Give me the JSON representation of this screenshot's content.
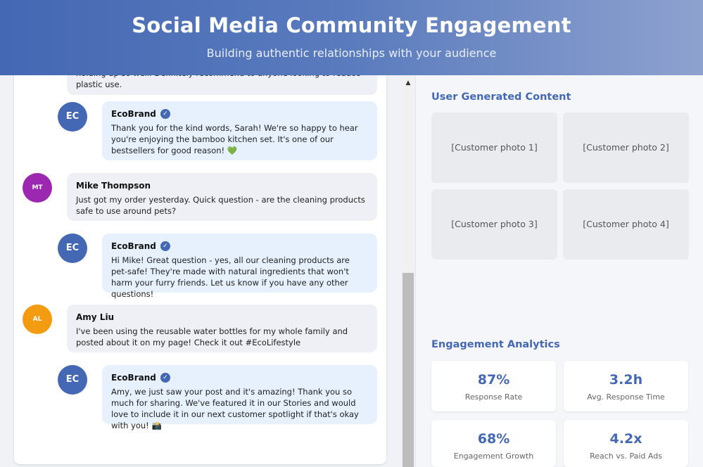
{
  "header": {
    "title": "Social Media Community Engagement",
    "subtitle": "Building authentic relationships with your audience"
  },
  "feed": {
    "messages": [
      {
        "type": "user",
        "author": "",
        "avatar": "",
        "text": "holding up so well. Definitely recommend to anyone looking to reduce plastic use."
      },
      {
        "type": "brand",
        "author": "EcoBrand",
        "avatar": "EC",
        "text": "Thank you for the kind words, Sarah! We're so happy to hear you're enjoying the bamboo kitchen set. It's one of our bestsellers for good reason!",
        "emoji": "💚"
      },
      {
        "type": "user",
        "author": "Mike Thompson",
        "avatar": "MT",
        "text": "Just got my order yesterday. Quick question - are the cleaning products safe to use around pets?"
      },
      {
        "type": "brand",
        "author": "EcoBrand",
        "avatar": "EC",
        "text": "Hi Mike! Great question - yes, all our cleaning products are pet-safe! They're made with natural ingredients that won't harm your furry friends. Let us know if you have any other questions!"
      },
      {
        "type": "user",
        "author": "Amy Liu",
        "avatar": "AL",
        "text": "I've been using the reusable water bottles for my whole family and posted about it on my page! Check it out #EcoLifestyle"
      },
      {
        "type": "brand",
        "author": "EcoBrand",
        "avatar": "EC",
        "text": "Amy, we just saw your post and it's amazing! Thank you so much for sharing. We've featured it in our Stories and would love to include it in our next customer spotlight if that's okay with you!",
        "emoji": "📸"
      }
    ],
    "verified_icon": "check-badge-icon"
  },
  "ugc": {
    "title": "User Generated Content",
    "photos": [
      "[Customer photo 1]",
      "[Customer photo 2]",
      "[Customer photo 3]",
      "[Customer photo 4]"
    ]
  },
  "analytics": {
    "title": "Engagement Analytics",
    "stats": [
      {
        "value": "87%",
        "label": "Response Rate"
      },
      {
        "value": "3.2h",
        "label": "Avg. Response Time"
      },
      {
        "value": "68%",
        "label": "Engagement Growth"
      },
      {
        "value": "4.2x",
        "label": "Reach vs. Paid Ads"
      }
    ]
  },
  "colors": {
    "brand": "#4468b3",
    "mt_avatar": "#9c27b0",
    "al_avatar": "#f39c12",
    "brand_bubble": "#e6f1fd",
    "user_bubble": "#eef0f5"
  }
}
